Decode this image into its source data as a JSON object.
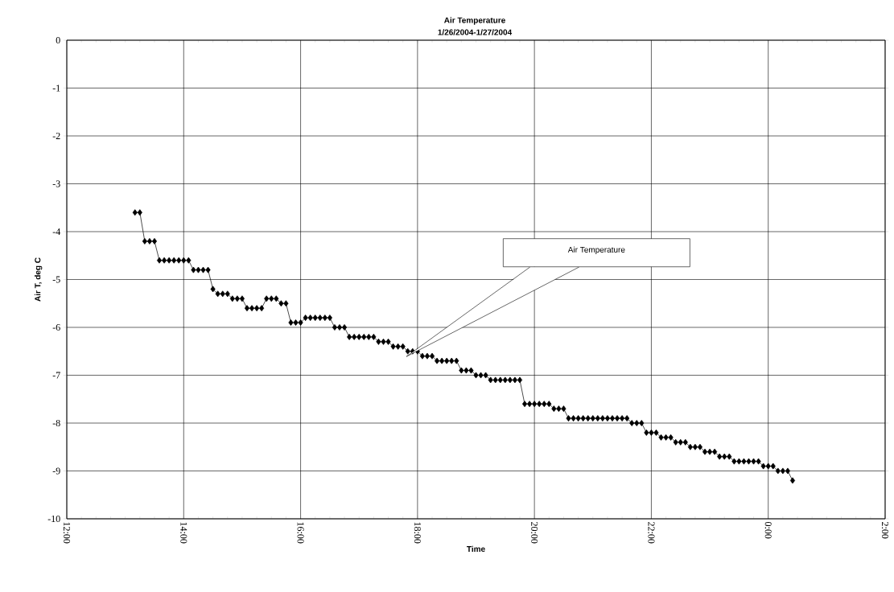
{
  "chart_data": {
    "type": "line",
    "title": "Air Temperature",
    "subtitle": "1/26/2004-1/27/2004",
    "xlabel": "Time",
    "ylabel": "Air T, deg C",
    "color": "#000000",
    "marker": "diamond",
    "line_style": "solid",
    "grid": true,
    "xlim": [
      "2004-01-26T12:00",
      "2004-01-27T02:00"
    ],
    "ylim": [
      -10,
      0
    ],
    "xticks": [
      {
        "value": "2004-01-26T12:00",
        "label": "12:00"
      },
      {
        "value": "2004-01-26T14:00",
        "label": "14:00"
      },
      {
        "value": "2004-01-26T16:00",
        "label": "16:00"
      },
      {
        "value": "2004-01-26T18:00",
        "label": "18:00"
      },
      {
        "value": "2004-01-26T20:00",
        "label": "20:00"
      },
      {
        "value": "2004-01-26T22:00",
        "label": "22:00"
      },
      {
        "value": "2004-01-27T00:00",
        "label": "0:00"
      },
      {
        "value": "2004-01-27T02:00",
        "label": "2:00"
      }
    ],
    "yticks": [
      -10,
      -9,
      -8,
      -7,
      -6,
      -5,
      -4,
      -3,
      -2,
      -1,
      0
    ],
    "annotations": [
      "Air Temperature"
    ],
    "x": [
      "2004-01-26T13:10",
      "2004-01-26T13:15",
      "2004-01-26T13:20",
      "2004-01-26T13:25",
      "2004-01-26T13:30",
      "2004-01-26T13:35",
      "2004-01-26T13:40",
      "2004-01-26T13:45",
      "2004-01-26T13:50",
      "2004-01-26T13:55",
      "2004-01-26T14:00",
      "2004-01-26T14:05",
      "2004-01-26T14:10",
      "2004-01-26T14:15",
      "2004-01-26T14:20",
      "2004-01-26T14:25",
      "2004-01-26T14:30",
      "2004-01-26T14:35",
      "2004-01-26T14:40",
      "2004-01-26T14:45",
      "2004-01-26T14:50",
      "2004-01-26T14:55",
      "2004-01-26T15:00",
      "2004-01-26T15:05",
      "2004-01-26T15:10",
      "2004-01-26T15:15",
      "2004-01-26T15:20",
      "2004-01-26T15:25",
      "2004-01-26T15:30",
      "2004-01-26T15:35",
      "2004-01-26T15:40",
      "2004-01-26T15:45",
      "2004-01-26T15:50",
      "2004-01-26T15:55",
      "2004-01-26T16:00",
      "2004-01-26T16:05",
      "2004-01-26T16:10",
      "2004-01-26T16:15",
      "2004-01-26T16:20",
      "2004-01-26T16:25",
      "2004-01-26T16:30",
      "2004-01-26T16:35",
      "2004-01-26T16:40",
      "2004-01-26T16:45",
      "2004-01-26T16:50",
      "2004-01-26T16:55",
      "2004-01-26T17:00",
      "2004-01-26T17:05",
      "2004-01-26T17:10",
      "2004-01-26T17:15",
      "2004-01-26T17:20",
      "2004-01-26T17:25",
      "2004-01-26T17:30",
      "2004-01-26T17:35",
      "2004-01-26T17:40",
      "2004-01-26T17:45",
      "2004-01-26T17:50",
      "2004-01-26T17:55",
      "2004-01-26T18:00",
      "2004-01-26T18:05",
      "2004-01-26T18:10",
      "2004-01-26T18:15",
      "2004-01-26T18:20",
      "2004-01-26T18:25",
      "2004-01-26T18:30",
      "2004-01-26T18:35",
      "2004-01-26T18:40",
      "2004-01-26T18:45",
      "2004-01-26T18:50",
      "2004-01-26T18:55",
      "2004-01-26T19:00",
      "2004-01-26T19:05",
      "2004-01-26T19:10",
      "2004-01-26T19:15",
      "2004-01-26T19:20",
      "2004-01-26T19:25",
      "2004-01-26T19:30",
      "2004-01-26T19:35",
      "2004-01-26T19:40",
      "2004-01-26T19:45",
      "2004-01-26T19:50",
      "2004-01-26T19:55",
      "2004-01-26T20:00",
      "2004-01-26T20:05",
      "2004-01-26T20:10",
      "2004-01-26T20:15",
      "2004-01-26T20:20",
      "2004-01-26T20:25",
      "2004-01-26T20:30",
      "2004-01-26T20:35",
      "2004-01-26T20:40",
      "2004-01-26T20:45",
      "2004-01-26T20:50",
      "2004-01-26T20:55",
      "2004-01-26T21:00",
      "2004-01-26T21:05",
      "2004-01-26T21:10",
      "2004-01-26T21:15",
      "2004-01-26T21:20",
      "2004-01-26T21:25",
      "2004-01-26T21:30",
      "2004-01-26T21:35",
      "2004-01-26T21:40",
      "2004-01-26T21:45",
      "2004-01-26T21:50",
      "2004-01-26T21:55",
      "2004-01-26T22:00",
      "2004-01-26T22:05",
      "2004-01-26T22:10",
      "2004-01-26T22:15",
      "2004-01-26T22:20",
      "2004-01-26T22:25",
      "2004-01-26T22:30",
      "2004-01-26T22:35",
      "2004-01-26T22:40",
      "2004-01-26T22:45",
      "2004-01-26T22:50",
      "2004-01-26T22:55",
      "2004-01-26T23:00",
      "2004-01-26T23:05",
      "2004-01-26T23:10",
      "2004-01-26T23:15",
      "2004-01-26T23:20",
      "2004-01-26T23:25",
      "2004-01-26T23:30",
      "2004-01-26T23:35",
      "2004-01-26T23:40",
      "2004-01-26T23:45",
      "2004-01-26T23:50",
      "2004-01-26T23:55",
      "2004-01-27T00:00",
      "2004-01-27T00:05",
      "2004-01-27T00:10",
      "2004-01-27T00:15",
      "2004-01-27T00:20",
      "2004-01-27T00:25"
    ],
    "values": [
      -3.6,
      -3.6,
      -4.2,
      -4.2,
      -4.2,
      -4.6,
      -4.6,
      -4.6,
      -4.6,
      -4.6,
      -4.6,
      -4.6,
      -4.8,
      -4.8,
      -4.8,
      -4.8,
      -5.2,
      -5.3,
      -5.3,
      -5.3,
      -5.4,
      -5.4,
      -5.4,
      -5.6,
      -5.6,
      -5.6,
      -5.6,
      -5.4,
      -5.4,
      -5.4,
      -5.5,
      -5.5,
      -5.9,
      -5.9,
      -5.9,
      -5.8,
      -5.8,
      -5.8,
      -5.8,
      -5.8,
      -5.8,
      -6.0,
      -6.0,
      -6.0,
      -6.2,
      -6.2,
      -6.2,
      -6.2,
      -6.2,
      -6.2,
      -6.3,
      -6.3,
      -6.3,
      -6.4,
      -6.4,
      -6.4,
      -6.5,
      -6.5,
      -6.5,
      -6.6,
      -6.6,
      -6.6,
      -6.7,
      -6.7,
      -6.7,
      -6.7,
      -6.7,
      -6.9,
      -6.9,
      -6.9,
      -7.0,
      -7.0,
      -7.0,
      -7.1,
      -7.1,
      -7.1,
      -7.1,
      -7.1,
      -7.1,
      -7.1,
      -7.6,
      -7.6,
      -7.6,
      -7.6,
      -7.6,
      -7.6,
      -7.7,
      -7.7,
      -7.7,
      -7.9,
      -7.9,
      -7.9,
      -7.9,
      -7.9,
      -7.9,
      -7.9,
      -7.9,
      -7.9,
      -7.9,
      -7.9,
      -7.9,
      -7.9,
      -8.0,
      -8.0,
      -8.0,
      -8.2,
      -8.2,
      -8.2,
      -8.3,
      -8.3,
      -8.3,
      -8.4,
      -8.4,
      -8.4,
      -8.5,
      -8.5,
      -8.5,
      -8.6,
      -8.6,
      -8.6,
      -8.7,
      -8.7,
      -8.7,
      -8.8,
      -8.8,
      -8.8,
      -8.8,
      -8.8,
      -8.8,
      -8.9,
      -8.9,
      -8.9,
      -9.0,
      -9.0,
      -9.0,
      -9.2
    ]
  }
}
